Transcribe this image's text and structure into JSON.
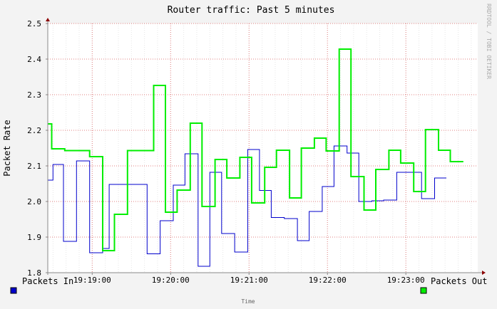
{
  "chart_data": {
    "type": "line",
    "title": "Router traffic: Past 5 minutes",
    "ylabel": "Packet Rate",
    "xlabel": "Time",
    "watermark": "RRDTOOL / TOBI OETIKER",
    "ylim": [
      1.8,
      2.5
    ],
    "y_ticks": [
      "1.8",
      "1.9",
      "2.0",
      "2.1",
      "2.2",
      "2.3",
      "2.4",
      "2.5"
    ],
    "x_ticks": [
      "19:19:00",
      "19:20:00",
      "19:21:00",
      "19:22:00",
      "19:23:00"
    ],
    "x_range": [
      "19:18:26",
      "19:23:55"
    ],
    "grid": true,
    "legend_position": "bottom",
    "step": true,
    "series": [
      {
        "name": "Packets In",
        "color": "#0000cc",
        "points": [
          [
            "19:18:26",
            2.06
          ],
          [
            "19:18:30",
            2.104
          ],
          [
            "19:18:38",
            1.888
          ],
          [
            "19:18:48",
            2.114
          ],
          [
            "19:18:58",
            1.856
          ],
          [
            "19:19:08",
            1.868
          ],
          [
            "19:19:13",
            2.048
          ],
          [
            "19:19:42",
            1.853
          ],
          [
            "19:19:52",
            1.946
          ],
          [
            "19:20:02",
            2.046
          ],
          [
            "19:20:11",
            2.134
          ],
          [
            "19:20:21",
            1.818
          ],
          [
            "19:20:30",
            2.082
          ],
          [
            "19:20:39",
            1.91
          ],
          [
            "19:20:49",
            1.858
          ],
          [
            "19:20:59",
            2.146
          ],
          [
            "19:21:08",
            2.031
          ],
          [
            "19:21:17",
            1.955
          ],
          [
            "19:21:27",
            1.952
          ],
          [
            "19:21:37",
            1.89
          ],
          [
            "19:21:46",
            1.972
          ],
          [
            "19:21:56",
            2.042
          ],
          [
            "19:22:05",
            2.156
          ],
          [
            "19:22:15",
            2.136
          ],
          [
            "19:22:24",
            2.0
          ],
          [
            "19:22:34",
            2.002
          ],
          [
            "19:22:43",
            2.004
          ],
          [
            "19:22:53",
            2.082
          ],
          [
            "19:23:12",
            2.008
          ],
          [
            "19:23:22",
            2.066
          ],
          [
            "19:23:31",
            2.066
          ]
        ]
      },
      {
        "name": "Packets Out",
        "color": "#00ee00",
        "points": [
          [
            "19:18:26",
            2.218
          ],
          [
            "19:18:29",
            2.148
          ],
          [
            "19:18:39",
            2.143
          ],
          [
            "19:18:58",
            2.126
          ],
          [
            "19:19:08",
            1.862
          ],
          [
            "19:19:17",
            1.964
          ],
          [
            "19:19:27",
            2.143
          ],
          [
            "19:19:47",
            2.326
          ],
          [
            "19:19:56",
            1.97
          ],
          [
            "19:20:05",
            2.032
          ],
          [
            "19:20:15",
            2.22
          ],
          [
            "19:20:24",
            1.986
          ],
          [
            "19:20:34",
            2.118
          ],
          [
            "19:20:43",
            2.066
          ],
          [
            "19:20:53",
            2.124
          ],
          [
            "19:21:02",
            1.996
          ],
          [
            "19:21:12",
            2.096
          ],
          [
            "19:21:21",
            2.144
          ],
          [
            "19:21:31",
            2.01
          ],
          [
            "19:21:40",
            2.15
          ],
          [
            "19:21:50",
            2.178
          ],
          [
            "19:21:59",
            2.142
          ],
          [
            "19:22:09",
            2.428
          ],
          [
            "19:22:18",
            2.07
          ],
          [
            "19:22:28",
            1.976
          ],
          [
            "19:22:37",
            2.09
          ],
          [
            "19:22:47",
            2.144
          ],
          [
            "19:22:56",
            2.108
          ],
          [
            "19:23:06",
            2.028
          ],
          [
            "19:23:15",
            2.202
          ],
          [
            "19:23:25",
            2.144
          ],
          [
            "19:23:34",
            2.112
          ],
          [
            "19:23:44",
            2.112
          ]
        ]
      }
    ]
  }
}
